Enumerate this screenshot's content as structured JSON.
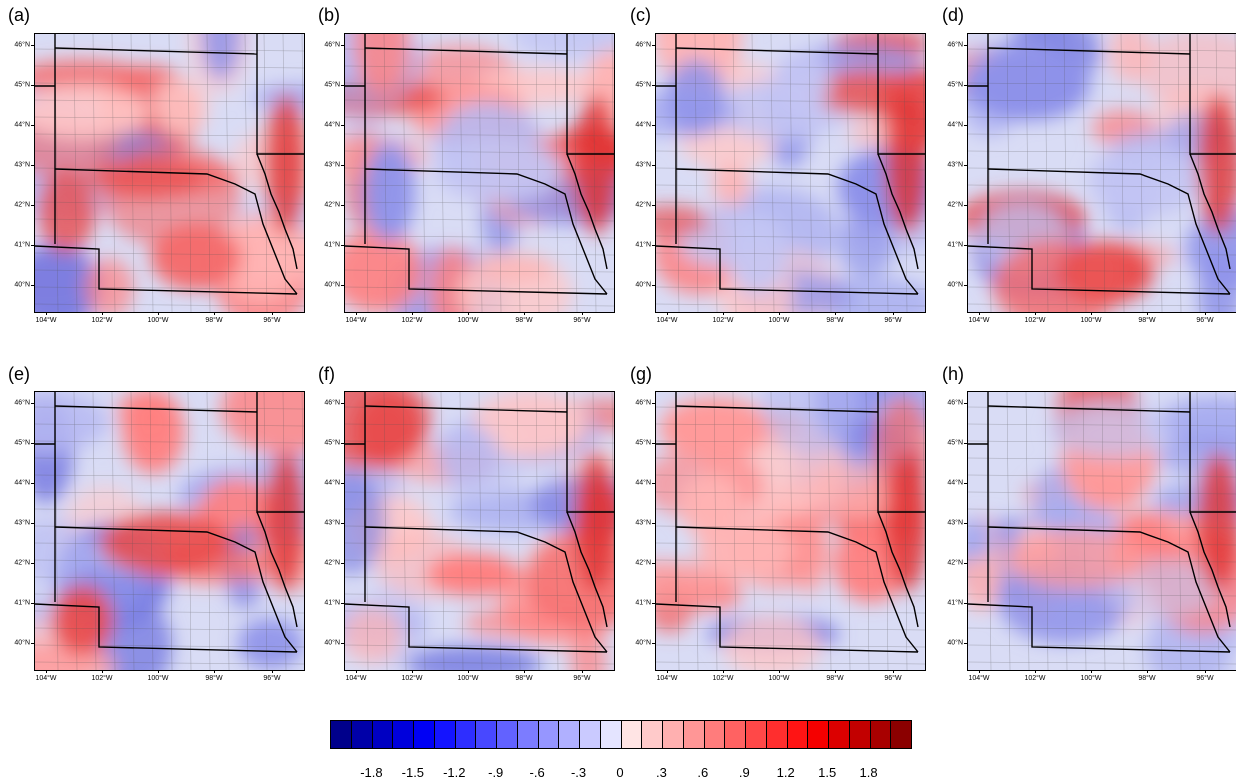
{
  "panels": [
    {
      "label": "(a)"
    },
    {
      "label": "(b)"
    },
    {
      "label": "(c)"
    },
    {
      "label": "(d)"
    },
    {
      "label": "(e)"
    },
    {
      "label": "(f)"
    },
    {
      "label": "(g)"
    },
    {
      "label": "(h)"
    }
  ],
  "lat_labels": [
    "46°N",
    "45°N",
    "44°N",
    "43°N",
    "42°N",
    "41°N",
    "40°N"
  ],
  "lon_labels": [
    "104°W",
    "102°W",
    "100°W",
    "98°W",
    "96°W"
  ],
  "colorbar": {
    "labels": [
      "-1.8",
      "-1.5",
      "-1.2",
      "-.9",
      "-.6",
      "-.3",
      "0",
      ".3",
      ".6",
      ".9",
      "1.2",
      "1.5",
      "1.8"
    ],
    "colors": [
      "#00008b",
      "#0000a8",
      "#0000c2",
      "#0000dc",
      "#0000f5",
      "#1414ff",
      "#2e2eff",
      "#4848ff",
      "#6262ff",
      "#7c7cff",
      "#9696ff",
      "#b0b0ff",
      "#cacaff",
      "#e4e4ff",
      "#ffe4e4",
      "#ffcaca",
      "#ffb0b0",
      "#ff9696",
      "#ff7c7c",
      "#ff6262",
      "#ff4848",
      "#ff2e2e",
      "#ff1414",
      "#f50000",
      "#dc0000",
      "#c20000",
      "#a80000",
      "#8b0000"
    ]
  }
}
